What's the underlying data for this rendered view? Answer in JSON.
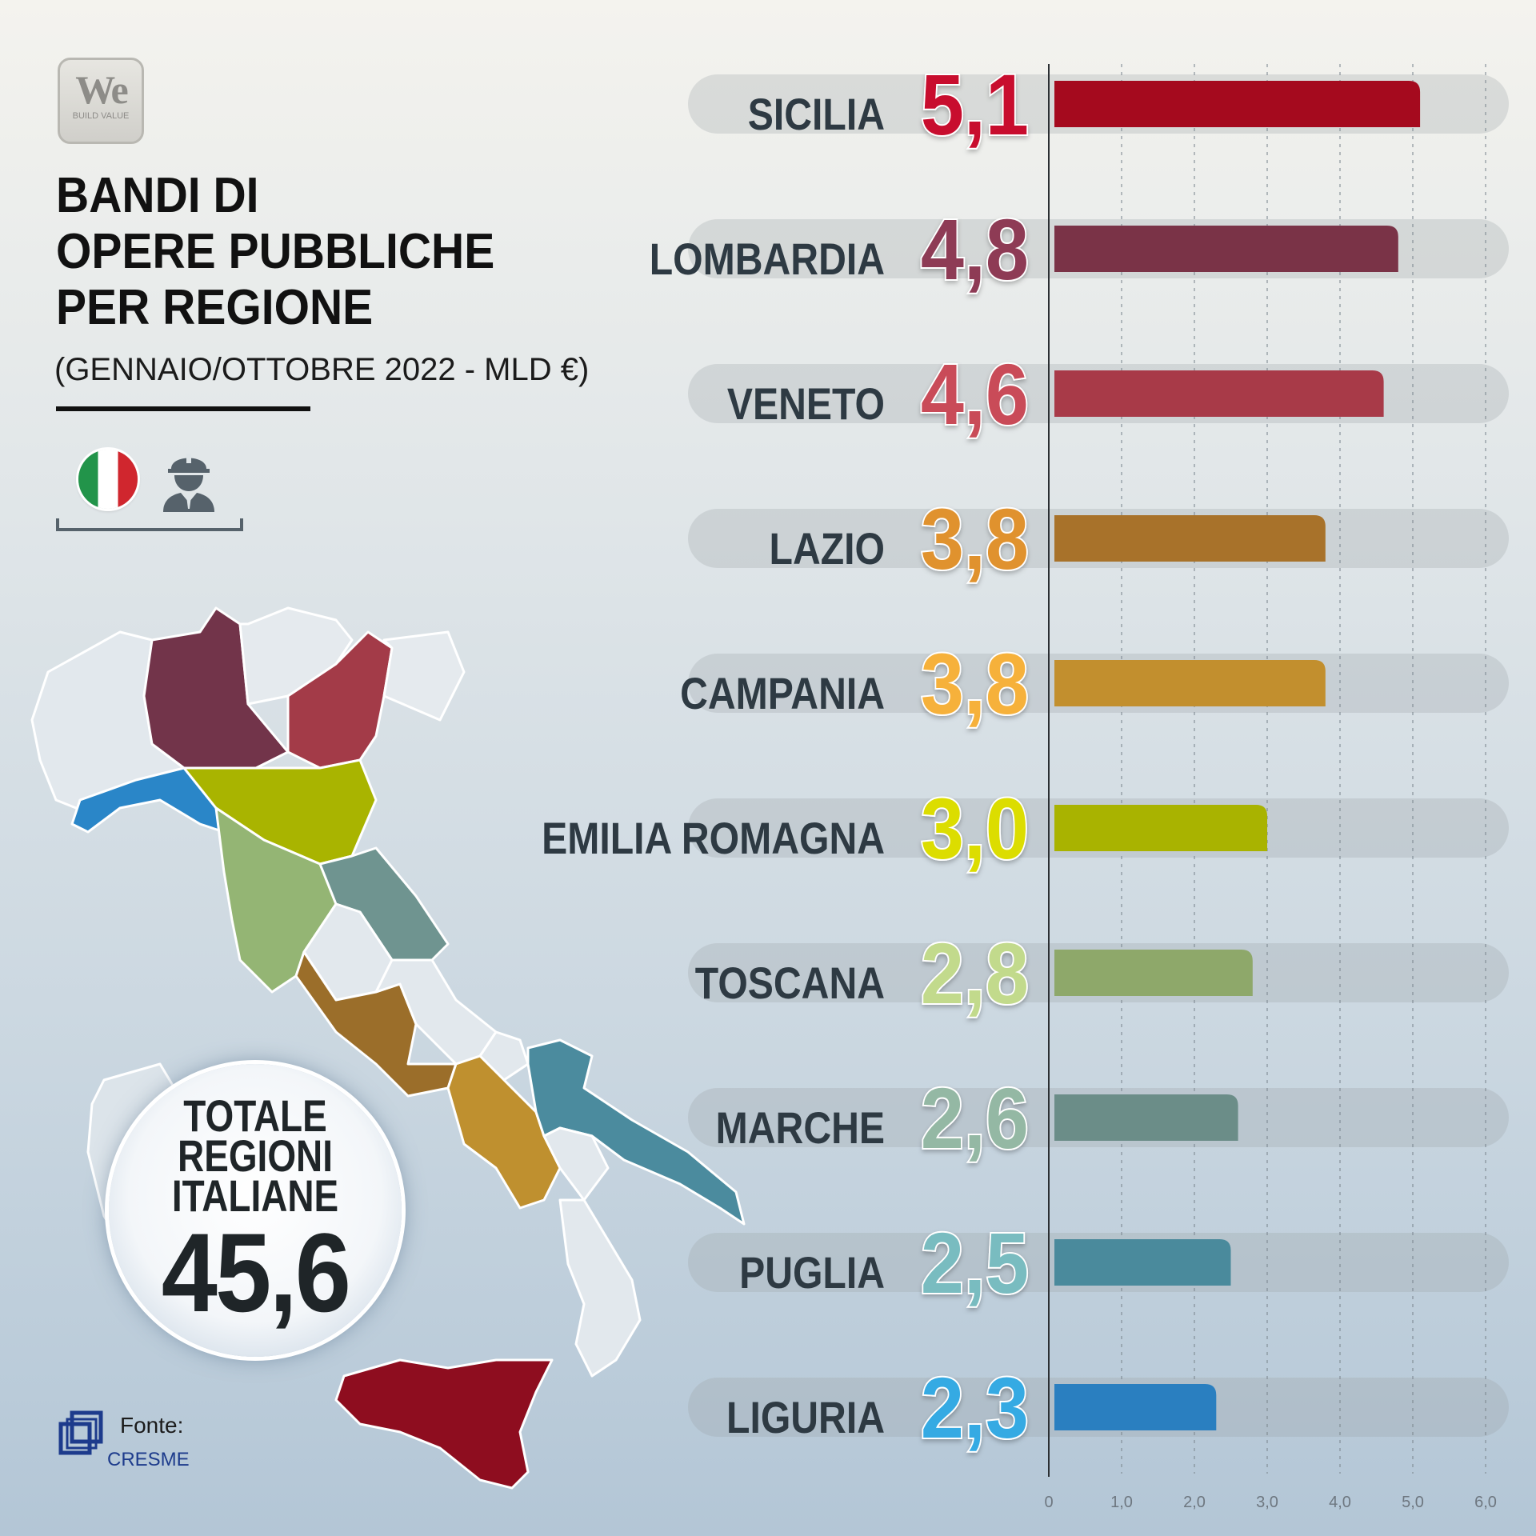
{
  "logo": {
    "main": "We",
    "sub": "BUILD VALUE"
  },
  "title_lines": [
    "BANDI DI",
    "OPERE PUBBLICHE",
    "PER REGIONE"
  ],
  "subtitle": "(GENNAIO/OTTOBRE 2022 - MLD €)",
  "icons": [
    "italian-flag-icon",
    "construction-worker-icon"
  ],
  "total": {
    "label_lines": [
      "TOTALE",
      "REGIONI",
      "ITALIANE"
    ],
    "value": "45,6"
  },
  "source": {
    "label": "Fonte:",
    "name": "CRESME"
  },
  "colors": {
    "SICILIA": "#a50a1e",
    "LOMBARDIA": "#7a3347",
    "VENETO": "#a83a48",
    "LAZIO": "#a8722a",
    "CAMPANIA": "#c28f2e",
    "EMILIA ROMAGNA": "#a9b300",
    "TOSCANA": "#8ea86a",
    "MARCHE": "#6b8d88",
    "PUGLIA": "#4a8a9c",
    "LIGURIA": "#2a7fc0"
  },
  "value_label_colors": {
    "SICILIA": "#c8102e",
    "LOMBARDIA": "#8e3a55",
    "VENETO": "#c94b58",
    "LAZIO": "#e0922e",
    "CAMPANIA": "#f6b13a",
    "EMILIA ROMAGNA": "#dcdd00",
    "TOSCANA": "#c2da8c",
    "MARCHE": "#94b8a4",
    "PUGLIA": "#79bcc0",
    "LIGURIA": "#34aae3"
  },
  "chart_data": {
    "type": "bar",
    "orientation": "horizontal",
    "categories": [
      "SICILIA",
      "LOMBARDIA",
      "VENETO",
      "LAZIO",
      "CAMPANIA",
      "EMILIA ROMAGNA",
      "TOSCANA",
      "MARCHE",
      "PUGLIA",
      "LIGURIA"
    ],
    "values": [
      5.1,
      4.8,
      4.6,
      3.8,
      3.8,
      3.0,
      2.8,
      2.6,
      2.5,
      2.3
    ],
    "value_labels": [
      "5,1",
      "4,8",
      "4,6",
      "3,8",
      "3,8",
      "3,0",
      "2,8",
      "2,6",
      "2,5",
      "2,3"
    ],
    "x_ticks": [
      0,
      1,
      2,
      3,
      4,
      5,
      6
    ],
    "x_tick_labels": [
      "0",
      "1,0",
      "2,0",
      "3,0",
      "4,0",
      "5,0",
      "6,0"
    ],
    "xlim": [
      0,
      6
    ],
    "title": "BANDI DI OPERE PUBBLICHE PER REGIONE",
    "xlabel": "",
    "ylabel": "",
    "grid": true
  }
}
